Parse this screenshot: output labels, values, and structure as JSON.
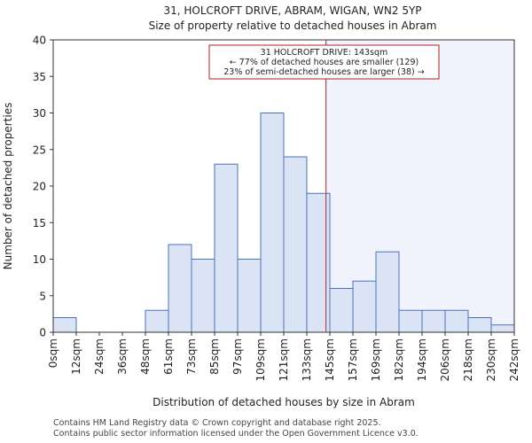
{
  "chart_data": {
    "type": "bar",
    "title": "31, HOLCROFT DRIVE, ABRAM, WIGAN, WN2 5YP",
    "subtitle": "Size of property relative to detached houses in Abram",
    "xlabel": "Distribution of detached houses by size in Abram",
    "ylabel": "Number of detached properties",
    "ylim": [
      0,
      40
    ],
    "yticks": [
      0,
      5,
      10,
      15,
      20,
      25,
      30,
      35,
      40
    ],
    "bin_edges": [
      0,
      12,
      24,
      36,
      48,
      61,
      73,
      85,
      97,
      109,
      121,
      133,
      145,
      157,
      169,
      182,
      194,
      206,
      218,
      230,
      242
    ],
    "tick_labels": [
      "0sqm",
      "12sqm",
      "24sqm",
      "36sqm",
      "48sqm",
      "61sqm",
      "73sqm",
      "85sqm",
      "97sqm",
      "109sqm",
      "121sqm",
      "133sqm",
      "145sqm",
      "157sqm",
      "169sqm",
      "182sqm",
      "194sqm",
      "206sqm",
      "218sqm",
      "230sqm",
      "242sqm"
    ],
    "values": [
      2,
      0,
      0,
      0,
      3,
      12,
      10,
      23,
      10,
      30,
      24,
      19,
      6,
      7,
      11,
      3,
      3,
      3,
      2,
      1
    ],
    "marker": {
      "value": 143,
      "line1": "31 HOLCROFT DRIVE: 143sqm",
      "line2": "← 77% of detached houses are smaller (129)",
      "line3": "23% of semi-detached houses are larger (38) →"
    },
    "colors": {
      "bar_fill": "#dae4f4",
      "bar_edge": "#4a74b8",
      "marker_line": "#b22222",
      "shade": "#f0f3fb"
    }
  },
  "footer": {
    "line1": "Contains HM Land Registry data © Crown copyright and database right 2025.",
    "line2": "Contains public sector information licensed under the Open Government Licence v3.0."
  }
}
